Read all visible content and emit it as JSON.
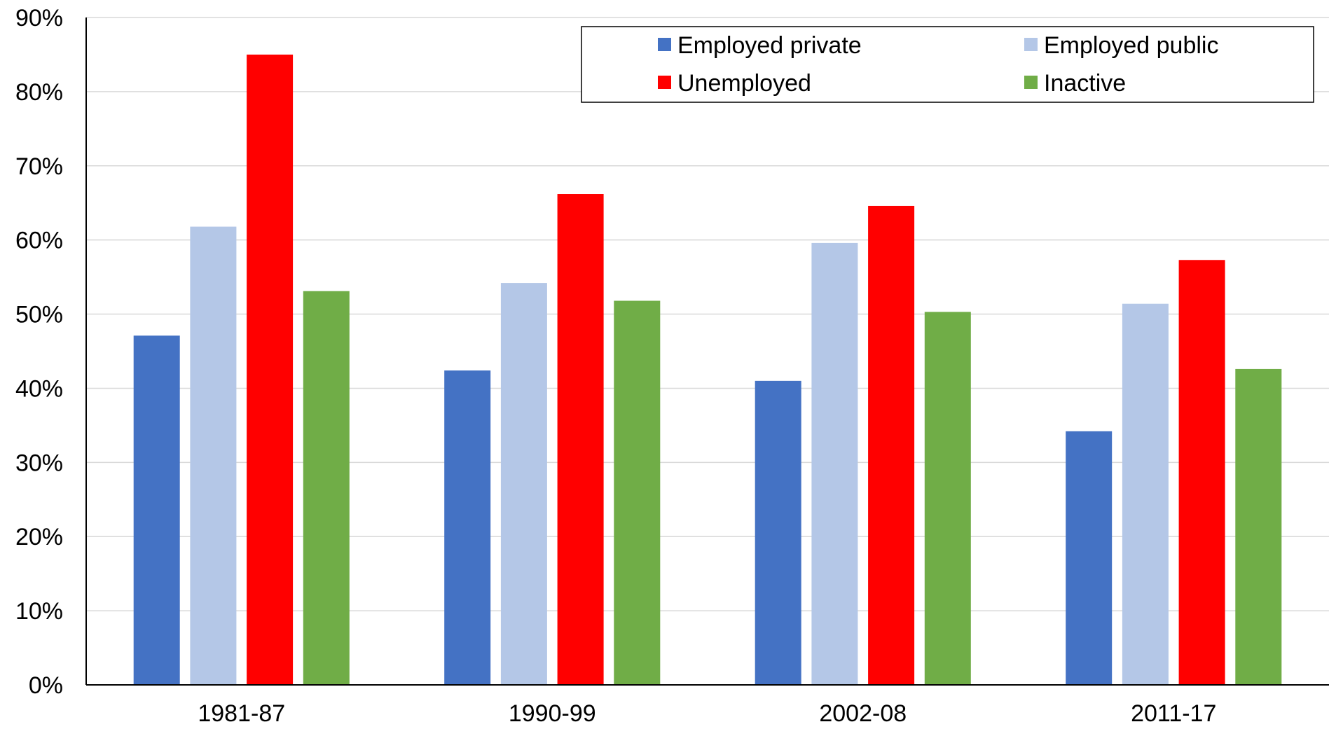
{
  "chart_data": {
    "type": "bar",
    "title": "",
    "xlabel": "",
    "ylabel": "",
    "ylim": [
      0,
      90
    ],
    "ytick_step": 10,
    "ytick_suffix": "%",
    "grid": true,
    "legend_position": "top-right",
    "categories": [
      "1981-87",
      "1990-99",
      "2002-08",
      "2011-17"
    ],
    "series": [
      {
        "name": "Employed private",
        "color": "#4472C4",
        "values": [
          47.1,
          42.4,
          41.0,
          34.2
        ]
      },
      {
        "name": "Employed public",
        "color": "#B4C7E7",
        "values": [
          61.8,
          54.2,
          59.6,
          51.4
        ]
      },
      {
        "name": "Unemployed",
        "color": "#FF0000",
        "values": [
          85.0,
          66.2,
          64.6,
          57.3
        ]
      },
      {
        "name": "Inactive",
        "color": "#70AD47",
        "values": [
          53.1,
          51.8,
          50.3,
          42.6
        ]
      }
    ]
  }
}
